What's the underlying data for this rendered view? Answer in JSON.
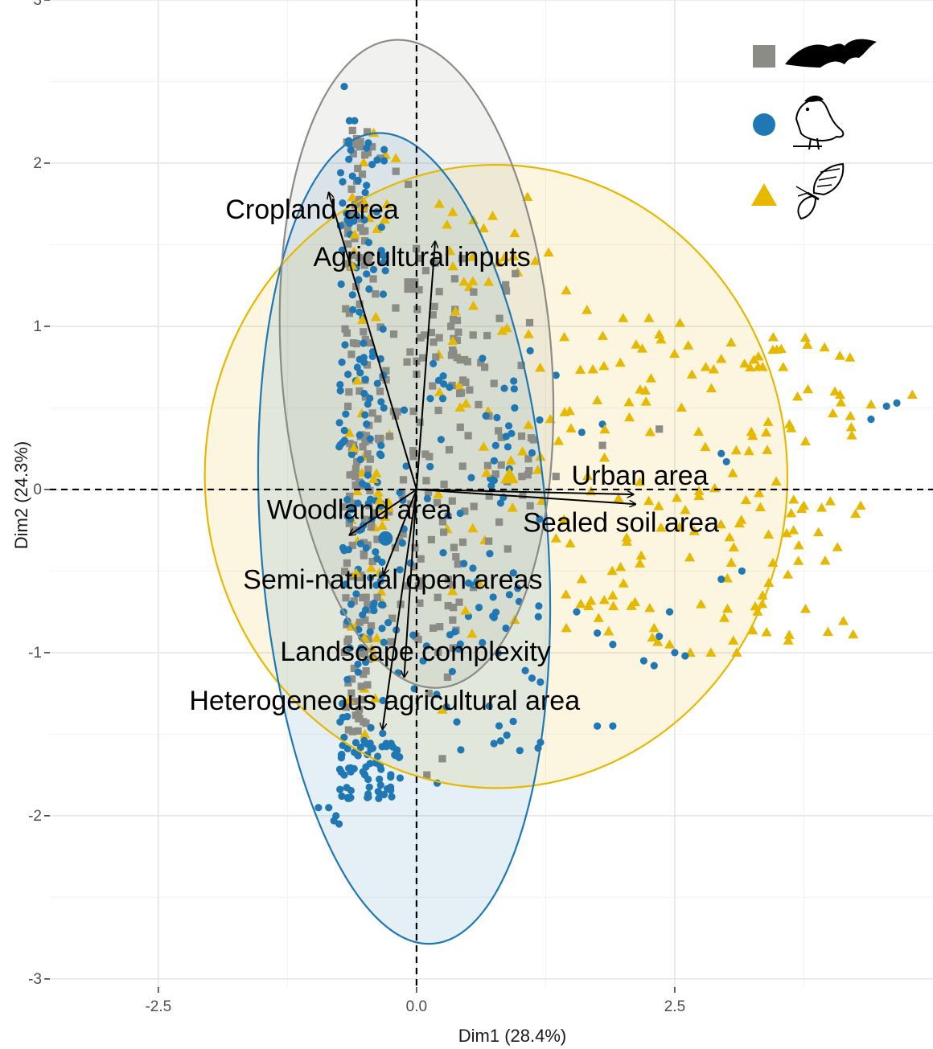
{
  "chart_data": {
    "type": "scatter",
    "title": "",
    "xlabel": "Dim1 (28.4%)",
    "ylabel": "Dim2 (24.3%)",
    "xlim": [
      -3.55,
      5.0
    ],
    "ylim": [
      -3.05,
      3.0
    ],
    "x_ticks": [
      -2.5,
      0.0,
      2.5
    ],
    "x_tick_labels": [
      "-2.5",
      "0.0",
      "2.5"
    ],
    "y_ticks": [
      -3,
      -2,
      -1,
      0,
      1,
      2,
      3
    ],
    "y_tick_labels": [
      "-3",
      "-2",
      "-1",
      "0",
      "1",
      "2",
      "3"
    ],
    "grid": true,
    "reference_lines": {
      "x": 0,
      "y": 0,
      "style": "dashed"
    },
    "legend": {
      "placement": "top-right",
      "entries": [
        {
          "marker": "square",
          "color": "#8c8c87",
          "icon": "bat-icon"
        },
        {
          "marker": "circle",
          "color": "#1f78b4",
          "icon": "bird-icon"
        },
        {
          "marker": "triangle",
          "color": "#e6b800",
          "icon": "butterfly-icon"
        }
      ]
    },
    "series": [
      {
        "marker": "square",
        "color": "#8c8c87",
        "ellipse": {
          "center": [
            0.0,
            0.77
          ],
          "semi_axes": [
            1.31,
            1.99
          ],
          "angle_deg": 4
        },
        "centroid": [
          -0.05,
          1.25
        ],
        "clusters": [
          {
            "x_range": [
              -0.7,
              -0.45
            ],
            "y_range": [
              -1.5,
              2.2
            ],
            "n": 130
          },
          {
            "x_range": [
              -0.45,
              0.45
            ],
            "y_range": [
              -1.0,
              1.5
            ],
            "n": 110
          },
          {
            "x_range": [
              0.3,
              1.15
            ],
            "y_range": [
              -0.4,
              1.4
            ],
            "n": 40
          }
        ],
        "points": [
          [
            -0.62,
            2.2
          ],
          [
            -0.58,
            2.15
          ],
          [
            -0.55,
            2.1
          ],
          [
            -0.5,
            2.05
          ],
          [
            -0.43,
            2.1
          ],
          [
            -0.35,
            2.03
          ],
          [
            -0.2,
            1.95
          ],
          [
            -0.08,
            1.87
          ],
          [
            0.22,
            0.93
          ],
          [
            0.35,
            0.85
          ],
          [
            0.45,
            0.67
          ],
          [
            0.5,
            0.33
          ],
          [
            0.6,
            0.52
          ],
          [
            0.7,
            0.45
          ],
          [
            0.75,
            0.65
          ],
          [
            0.82,
            0.15
          ],
          [
            1.02,
            0.08
          ],
          [
            1.1,
            -0.1
          ],
          [
            1.35,
            0.08
          ],
          [
            1.8,
            0.27
          ],
          [
            2.35,
            0.37
          ],
          [
            0.8,
            -0.2
          ],
          [
            0.55,
            -0.6
          ],
          [
            0.35,
            -0.8
          ],
          [
            0.12,
            -1.25
          ],
          [
            0.3,
            -1.15
          ],
          [
            0.1,
            -1.75
          ],
          [
            0.25,
            -1.65
          ]
        ]
      },
      {
        "marker": "circle",
        "color": "#1f78b4",
        "ellipse": {
          "center": [
            -0.12,
            -0.3
          ],
          "semi_axes": [
            1.39,
            2.49
          ],
          "angle_deg": 4
        },
        "centroid": [
          -0.3,
          -0.3
        ],
        "clusters": [
          {
            "x_range": [
              -0.75,
              -0.3
            ],
            "y_range": [
              -1.9,
              2.25
            ],
            "n": 170
          },
          {
            "x_range": [
              -0.75,
              -0.15
            ],
            "y_range": [
              -1.9,
              -1.55
            ],
            "n": 50
          },
          {
            "x_range": [
              -0.3,
              1.2
            ],
            "y_range": [
              -1.6,
              0.9
            ],
            "n": 90
          }
        ],
        "points": [
          [
            -0.7,
            2.47
          ],
          [
            -0.65,
            2.26
          ],
          [
            -0.6,
            2.26
          ],
          [
            -0.95,
            -1.95
          ],
          [
            -0.85,
            -1.95
          ],
          [
            -0.8,
            -2.03
          ],
          [
            -0.75,
            -2.05
          ],
          [
            -0.78,
            -2.0
          ],
          [
            1.55,
            -0.75
          ],
          [
            1.75,
            -0.88
          ],
          [
            1.9,
            -0.95
          ],
          [
            2.2,
            -1.05
          ],
          [
            2.3,
            -1.08
          ],
          [
            2.35,
            -0.9
          ],
          [
            2.45,
            -0.75
          ],
          [
            2.5,
            -1.0
          ],
          [
            2.6,
            -1.02
          ],
          [
            2.95,
            -0.55
          ],
          [
            3.15,
            -0.5
          ],
          [
            1.9,
            -1.45
          ],
          [
            1.75,
            -1.45
          ],
          [
            1.2,
            -1.55
          ],
          [
            1.0,
            -1.6
          ],
          [
            4.4,
            0.43
          ],
          [
            4.55,
            0.51
          ],
          [
            4.65,
            0.53
          ],
          [
            2.95,
            0.22
          ],
          [
            3.0,
            0.17
          ],
          [
            1.6,
            0.35
          ],
          [
            1.8,
            0.4
          ],
          [
            1.35,
            0.7
          ],
          [
            1.1,
            0.85
          ],
          [
            0.95,
            0.5
          ],
          [
            0.85,
            0.62
          ],
          [
            0.2,
            -1.8
          ],
          [
            -0.5,
            -1.75
          ]
        ]
      },
      {
        "marker": "triangle",
        "color": "#e6b800",
        "ellipse": {
          "center": [
            0.77,
            0.08
          ],
          "semi_axes": [
            2.82,
            1.91
          ],
          "angle_deg": 1
        },
        "centroid": [
          0.9,
          0.08
        ],
        "clusters": [
          {
            "x_range": [
              -0.7,
              -0.25
            ],
            "y_range": [
              -1.3,
              2.2
            ],
            "n": 50
          },
          {
            "x_range": [
              0.2,
              1.3
            ],
            "y_range": [
              -0.9,
              1.8
            ],
            "n": 45
          },
          {
            "x_range": [
              1.3,
              4.3
            ],
            "y_range": [
              -0.95,
              0.95
            ],
            "n": 140
          }
        ],
        "points": [
          [
            -0.3,
            2.05
          ],
          [
            -0.2,
            2.03
          ],
          [
            0.22,
            1.75
          ],
          [
            0.35,
            1.7
          ],
          [
            0.55,
            1.65
          ],
          [
            0.65,
            1.6
          ],
          [
            0.95,
            1.57
          ],
          [
            1.15,
            1.4
          ],
          [
            1.45,
            1.22
          ],
          [
            1.65,
            1.1
          ],
          [
            2.0,
            1.05
          ],
          [
            2.25,
            1.05
          ],
          [
            2.55,
            1.02
          ],
          [
            2.35,
            0.95
          ],
          [
            2.8,
            0.75
          ],
          [
            2.95,
            0.8
          ],
          [
            3.35,
            0.75
          ],
          [
            3.55,
            0.75
          ],
          [
            3.95,
            0.87
          ],
          [
            4.05,
            0.6
          ],
          [
            4.1,
            0.58
          ],
          [
            4.2,
            0.45
          ],
          [
            4.4,
            0.52
          ],
          [
            4.8,
            0.58
          ],
          [
            4.3,
            -0.1
          ],
          [
            4.25,
            -0.15
          ],
          [
            3.75,
            -0.1
          ],
          [
            3.65,
            -0.25
          ],
          [
            3.45,
            -0.45
          ],
          [
            3.35,
            -0.65
          ],
          [
            3.1,
            -1.0
          ],
          [
            2.85,
            -1.0
          ],
          [
            2.65,
            -1.0
          ],
          [
            2.45,
            -0.95
          ],
          [
            2.3,
            -0.85
          ],
          [
            1.45,
            -0.85
          ],
          [
            0.95,
            -0.8
          ],
          [
            0.25,
            -1.35
          ],
          [
            -0.5,
            -1.5
          ],
          [
            1.2,
            0.2
          ],
          [
            1.35,
            -0.3
          ],
          [
            1.6,
            -0.55
          ],
          [
            1.9,
            -0.65
          ]
        ]
      }
    ],
    "vectors": [
      {
        "name": "Cropland area",
        "end": [
          -0.85,
          1.82
        ],
        "label_pos": [
          -1.85,
          1.66
        ]
      },
      {
        "name": "Agricultural inputs",
        "end": [
          0.18,
          1.52
        ],
        "label_pos": [
          -1.0,
          1.37
        ]
      },
      {
        "name": "Urban area",
        "end": [
          2.1,
          -0.03
        ],
        "label_pos": [
          1.5,
          0.03
        ]
      },
      {
        "name": "Sealed soil area",
        "end": [
          2.12,
          -0.09
        ],
        "label_pos": [
          1.03,
          -0.26
        ]
      },
      {
        "name": "Woodland area",
        "end": [
          -0.65,
          -0.28
        ],
        "label_pos": [
          -1.45,
          -0.18
        ]
      },
      {
        "name": "Semi-natural open areas",
        "end": [
          -0.32,
          -0.52
        ],
        "label_pos": [
          -1.68,
          -0.61
        ]
      },
      {
        "name": "Landscape complexity",
        "end": [
          -0.12,
          -1.15
        ],
        "label_pos": [
          -1.32,
          -1.05
        ]
      },
      {
        "name": "Heterogeneous agricultural area",
        "end": [
          -0.33,
          -1.47
        ],
        "label_pos": [
          -2.2,
          -1.35
        ]
      }
    ]
  }
}
